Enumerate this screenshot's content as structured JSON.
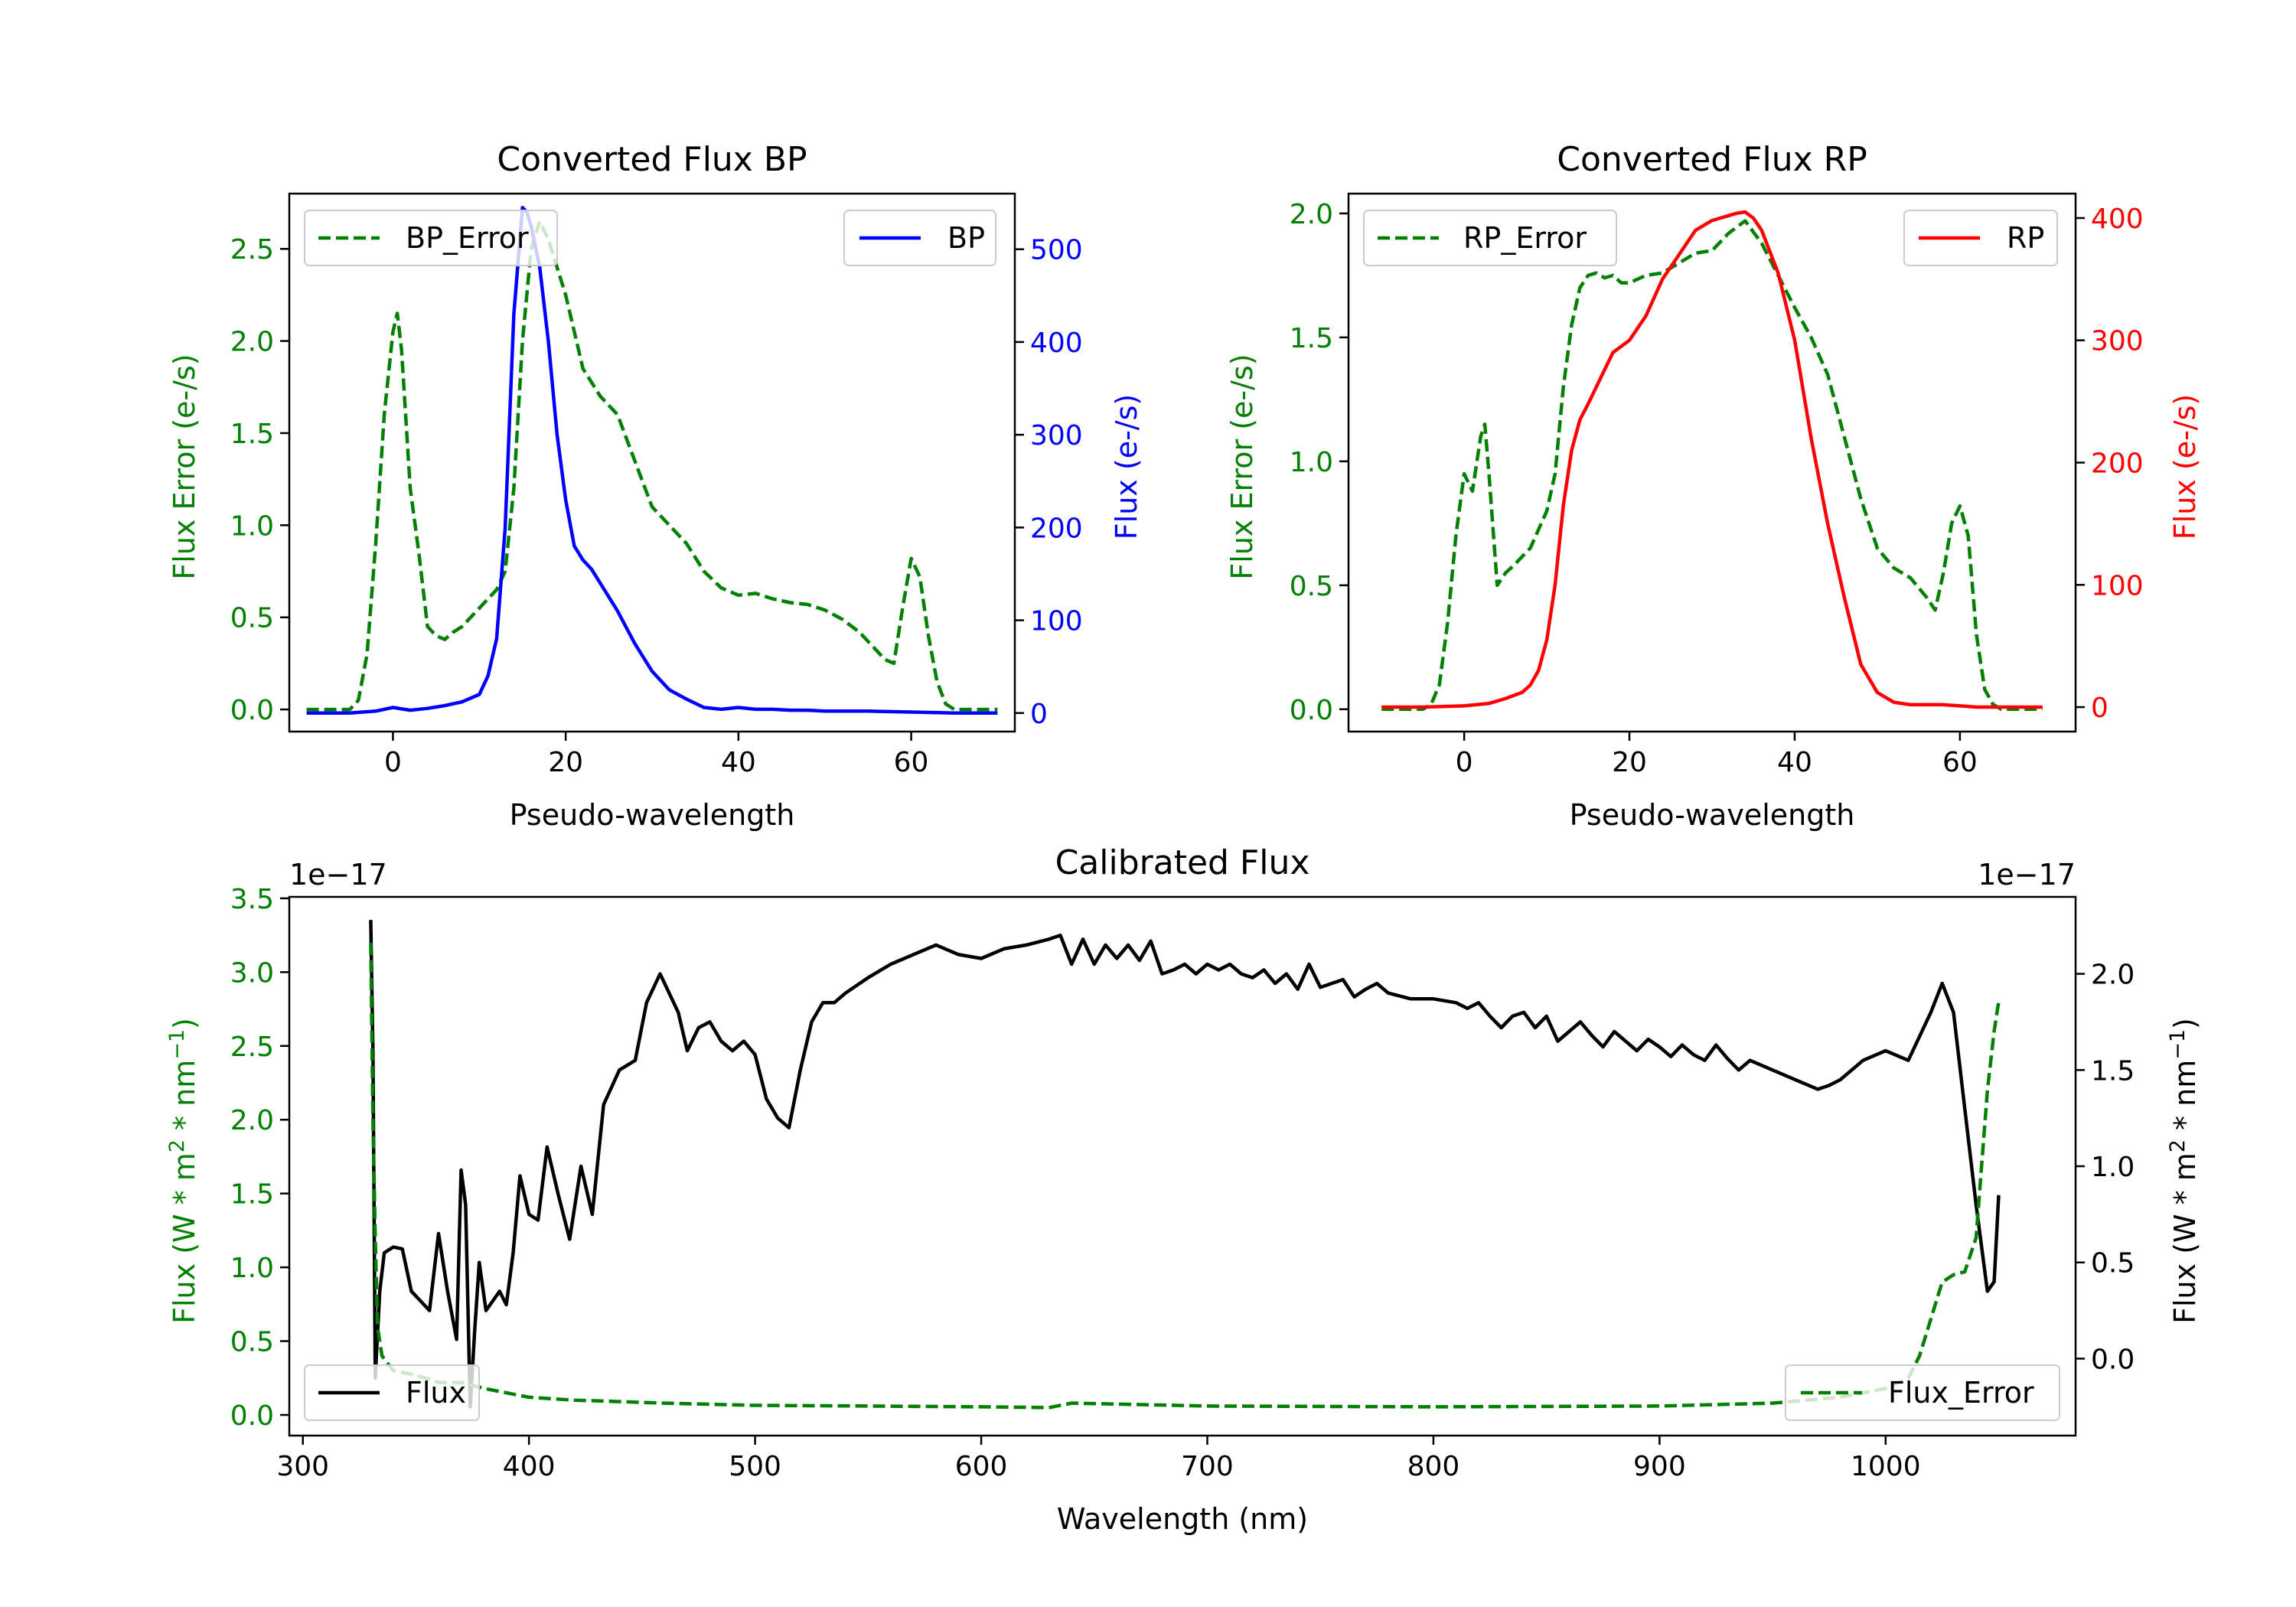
{
  "colors": {
    "green": "#008000",
    "blue": "#0000ff",
    "red": "#ff0000",
    "black": "#000000"
  },
  "chart_data": [
    {
      "type": "line",
      "title": "Converted Flux BP",
      "xlabel": "Pseudo-wavelength",
      "ylabel_left": "Flux Error (e-/s)",
      "ylabel_right": "Flux (e-/s)",
      "xlim": [
        -12,
        72
      ],
      "ylim_left": [
        -0.12,
        2.8
      ],
      "ylim_right": [
        -20,
        560
      ],
      "xticks": [
        0,
        20,
        40,
        60
      ],
      "yticks_left": [
        0.0,
        0.5,
        1.0,
        1.5,
        2.0,
        2.5
      ],
      "yticks_right": [
        0,
        100,
        200,
        300,
        400,
        500
      ],
      "series": [
        {
          "name": "BP_Error",
          "axis": "left",
          "style": "dashed",
          "color": "#008000",
          "legend": "top-left",
          "x": [
            -10,
            -5,
            -4,
            -3,
            -2,
            -1,
            0,
            0.5,
            1,
            2,
            3,
            4,
            5,
            6,
            7,
            8,
            10,
            12,
            13,
            14,
            15,
            16,
            17,
            18,
            20,
            22,
            24,
            26,
            28,
            30,
            32,
            34,
            36,
            38,
            40,
            42,
            44,
            46,
            48,
            50,
            52,
            54,
            56,
            57,
            58,
            59,
            60,
            61,
            62,
            63,
            64,
            65,
            70
          ],
          "y": [
            0.0,
            0.0,
            0.05,
            0.3,
            0.9,
            1.6,
            2.05,
            2.15,
            1.95,
            1.2,
            0.85,
            0.45,
            0.4,
            0.38,
            0.42,
            0.45,
            0.55,
            0.65,
            0.75,
            1.2,
            2.0,
            2.5,
            2.65,
            2.55,
            2.25,
            1.85,
            1.7,
            1.6,
            1.35,
            1.1,
            1.0,
            0.9,
            0.75,
            0.66,
            0.62,
            0.63,
            0.6,
            0.58,
            0.57,
            0.54,
            0.49,
            0.42,
            0.32,
            0.27,
            0.25,
            0.55,
            0.82,
            0.72,
            0.4,
            0.15,
            0.03,
            0.0,
            0.0
          ]
        },
        {
          "name": "BP",
          "axis": "right",
          "style": "solid",
          "color": "#0000ff",
          "legend": "top-right",
          "x": [
            -10,
            -5,
            -2,
            0,
            2,
            4,
            6,
            8,
            10,
            11,
            12,
            13,
            14,
            15,
            15.5,
            16,
            17,
            18,
            19,
            20,
            21,
            22,
            23,
            24,
            26,
            28,
            30,
            32,
            34,
            36,
            38,
            40,
            42,
            44,
            46,
            48,
            50,
            55,
            60,
            65,
            70
          ],
          "y": [
            0,
            0,
            2,
            6,
            3,
            5,
            8,
            12,
            20,
            40,
            80,
            200,
            430,
            545,
            540,
            525,
            480,
            400,
            300,
            230,
            180,
            165,
            155,
            140,
            110,
            75,
            45,
            25,
            15,
            6,
            4,
            6,
            4,
            4,
            3,
            3,
            2,
            2,
            1,
            0,
            0
          ]
        }
      ]
    },
    {
      "type": "line",
      "title": "Converted Flux RP",
      "xlabel": "Pseudo-wavelength",
      "ylabel_left": "Flux Error (e-/s)",
      "ylabel_right": "Flux (e-/s)",
      "xlim": [
        -14,
        74
      ],
      "ylim_left": [
        -0.09,
        2.08
      ],
      "ylim_right": [
        -20,
        420
      ],
      "xticks": [
        0,
        20,
        40,
        60
      ],
      "yticks_left": [
        0.0,
        0.5,
        1.0,
        1.5,
        2.0
      ],
      "yticks_right": [
        0,
        100,
        200,
        300,
        400
      ],
      "series": [
        {
          "name": "RP_Error",
          "axis": "left",
          "style": "dashed",
          "color": "#008000",
          "legend": "top-left",
          "x": [
            -10,
            -5,
            -4,
            -3,
            -2,
            -1,
            0,
            1,
            2,
            2.5,
            3,
            4,
            5,
            6,
            8,
            10,
            11,
            12,
            13,
            14,
            15,
            16,
            17,
            18,
            19,
            20,
            22,
            24,
            26,
            28,
            30,
            32,
            34,
            36,
            38,
            40,
            42,
            44,
            46,
            48,
            50,
            52,
            54,
            56,
            57,
            58,
            59,
            60,
            61,
            62,
            63,
            64,
            65,
            70
          ],
          "y": [
            0.0,
            0.0,
            0.02,
            0.1,
            0.35,
            0.7,
            0.95,
            0.88,
            1.1,
            1.15,
            0.95,
            0.5,
            0.55,
            0.58,
            0.65,
            0.8,
            0.95,
            1.3,
            1.55,
            1.7,
            1.75,
            1.76,
            1.74,
            1.75,
            1.72,
            1.72,
            1.75,
            1.76,
            1.8,
            1.84,
            1.85,
            1.92,
            1.97,
            1.88,
            1.75,
            1.62,
            1.5,
            1.35,
            1.1,
            0.85,
            0.65,
            0.57,
            0.53,
            0.45,
            0.4,
            0.55,
            0.75,
            0.82,
            0.7,
            0.3,
            0.08,
            0.02,
            0.0,
            0.0
          ]
        },
        {
          "name": "RP",
          "axis": "right",
          "style": "solid",
          "color": "#ff0000",
          "legend": "top-right",
          "x": [
            -10,
            -5,
            0,
            3,
            5,
            7,
            8,
            9,
            10,
            11,
            12,
            13,
            14,
            15,
            16,
            18,
            20,
            22,
            24,
            26,
            28,
            30,
            32,
            33,
            34,
            35,
            36,
            38,
            40,
            42,
            44,
            46,
            48,
            50,
            52,
            54,
            56,
            58,
            60,
            62,
            65,
            70
          ],
          "y": [
            0,
            0,
            1,
            3,
            7,
            12,
            18,
            30,
            55,
            100,
            165,
            210,
            235,
            248,
            262,
            290,
            300,
            320,
            350,
            370,
            390,
            398,
            402,
            404,
            405,
            400,
            390,
            355,
            300,
            220,
            150,
            90,
            35,
            12,
            4,
            2,
            2,
            2,
            1,
            0,
            0,
            0
          ]
        }
      ]
    },
    {
      "type": "line",
      "title": "Calibrated Flux",
      "xlabel": "Wavelength (nm)",
      "ylabel_left": "Flux (W * m^2 * nm^-1)",
      "ylabel_right": "Flux (W * m^2 * nm^-1)",
      "offset_left": "1e−17",
      "offset_right": "1e−17",
      "xlim": [
        294,
        1084
      ],
      "ylim_left": [
        -0.14,
        3.51
      ],
      "ylim_right": [
        -0.4,
        2.4
      ],
      "xticks": [
        300,
        400,
        500,
        600,
        700,
        800,
        900,
        1000
      ],
      "yticks_left": [
        0.0,
        0.5,
        1.0,
        1.5,
        2.0,
        2.5,
        3.0,
        3.5
      ],
      "yticks_right": [
        0.0,
        0.5,
        1.0,
        1.5,
        2.0
      ],
      "series": [
        {
          "name": "Flux",
          "axis": "right",
          "style": "solid",
          "color": "#000000",
          "legend": "bottom-left",
          "x": [
            330,
            331,
            332,
            334,
            336,
            340,
            344,
            348,
            352,
            356,
            360,
            364,
            368,
            370,
            372,
            374,
            376,
            378,
            381,
            384,
            387,
            390,
            393,
            396,
            400,
            404,
            408,
            413,
            418,
            423,
            428,
            433,
            440,
            447,
            452,
            458,
            462,
            466,
            470,
            475,
            480,
            485,
            490,
            495,
            500,
            505,
            510,
            515,
            520,
            525,
            530,
            535,
            540,
            550,
            560,
            570,
            580,
            590,
            600,
            610,
            620,
            630,
            635,
            640,
            645,
            650,
            655,
            660,
            665,
            670,
            675,
            680,
            685,
            690,
            695,
            700,
            705,
            710,
            715,
            720,
            725,
            730,
            735,
            740,
            745,
            750,
            755,
            760,
            765,
            770,
            775,
            780,
            790,
            800,
            810,
            815,
            820,
            825,
            830,
            835,
            840,
            845,
            850,
            855,
            860,
            865,
            870,
            875,
            880,
            885,
            890,
            895,
            900,
            905,
            910,
            915,
            920,
            925,
            930,
            935,
            940,
            950,
            960,
            970,
            975,
            980,
            990,
            1000,
            1010,
            1020,
            1025,
            1030,
            1035,
            1040,
            1045,
            1048,
            1050
          ],
          "y": [
            2.28,
            1.6,
            -0.1,
            0.35,
            0.55,
            0.58,
            0.57,
            0.35,
            0.3,
            0.25,
            0.65,
            0.35,
            0.1,
            0.98,
            0.8,
            -0.25,
            0.15,
            0.5,
            0.25,
            0.3,
            0.35,
            0.28,
            0.55,
            0.95,
            0.75,
            0.72,
            1.1,
            0.85,
            0.62,
            1.0,
            0.75,
            1.32,
            1.5,
            1.55,
            1.85,
            2.0,
            1.9,
            1.8,
            1.6,
            1.72,
            1.75,
            1.65,
            1.6,
            1.65,
            1.58,
            1.35,
            1.25,
            1.2,
            1.5,
            1.75,
            1.85,
            1.85,
            1.9,
            1.98,
            2.05,
            2.1,
            2.15,
            2.1,
            2.08,
            2.13,
            2.15,
            2.18,
            2.2,
            2.05,
            2.18,
            2.05,
            2.15,
            2.08,
            2.15,
            2.07,
            2.17,
            2.0,
            2.02,
            2.05,
            2.0,
            2.05,
            2.02,
            2.05,
            2.0,
            1.98,
            2.02,
            1.95,
            2.0,
            1.92,
            2.05,
            1.93,
            1.95,
            1.97,
            1.88,
            1.92,
            1.95,
            1.9,
            1.87,
            1.87,
            1.85,
            1.82,
            1.85,
            1.78,
            1.72,
            1.78,
            1.8,
            1.72,
            1.78,
            1.65,
            1.7,
            1.75,
            1.68,
            1.62,
            1.7,
            1.65,
            1.6,
            1.66,
            1.62,
            1.57,
            1.63,
            1.58,
            1.55,
            1.63,
            1.56,
            1.5,
            1.55,
            1.5,
            1.45,
            1.4,
            1.42,
            1.45,
            1.55,
            1.6,
            1.55,
            1.8,
            1.95,
            1.8,
            1.3,
            0.8,
            0.35,
            0.4,
            0.85
          ]
        },
        {
          "name": "Flux_Error",
          "axis": "left",
          "style": "dashed",
          "color": "#008000",
          "legend": "bottom-right",
          "x": [
            330,
            331,
            332,
            333,
            335,
            340,
            350,
            360,
            370,
            380,
            390,
            400,
            420,
            440,
            460,
            500,
            550,
            600,
            630,
            640,
            700,
            800,
            900,
            950,
            980,
            1000,
            1010,
            1015,
            1020,
            1025,
            1030,
            1035,
            1040,
            1042,
            1045,
            1048,
            1050
          ],
          "y": [
            3.2,
            2.0,
            1.2,
            0.6,
            0.4,
            0.3,
            0.27,
            0.22,
            0.22,
            0.18,
            0.15,
            0.12,
            0.1,
            0.09,
            0.08,
            0.065,
            0.06,
            0.055,
            0.05,
            0.08,
            0.06,
            0.055,
            0.06,
            0.08,
            0.12,
            0.18,
            0.25,
            0.4,
            0.65,
            0.9,
            0.95,
            0.97,
            1.2,
            1.6,
            2.2,
            2.6,
            2.8
          ]
        }
      ]
    }
  ]
}
